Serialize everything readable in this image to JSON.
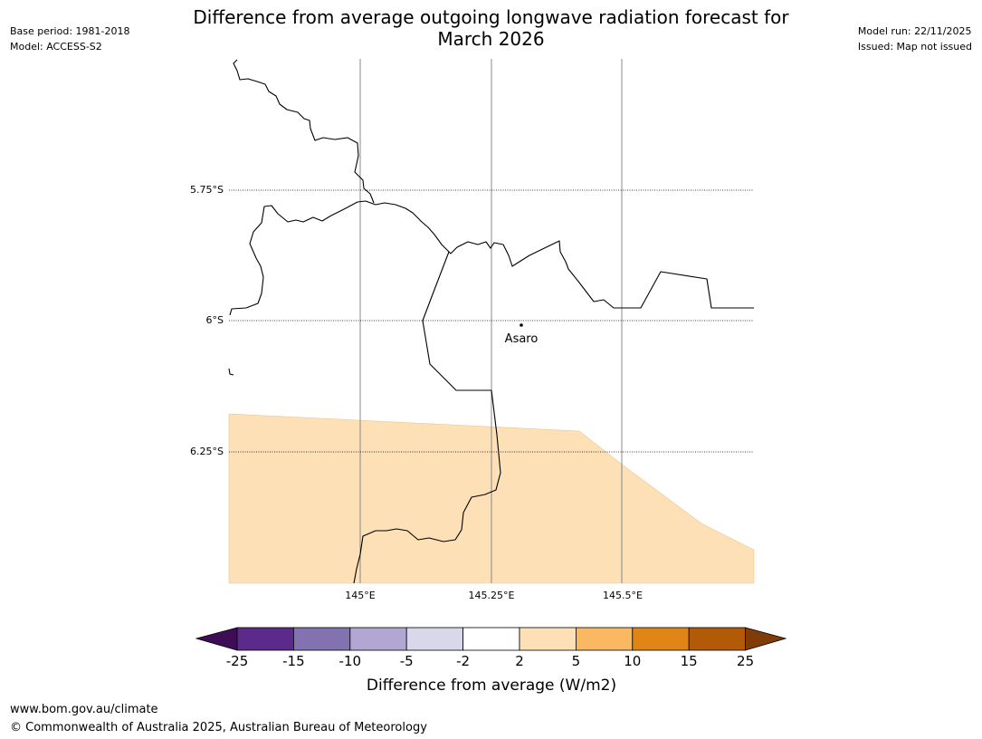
{
  "header": {
    "title_line1": "Difference from average outgoing longwave radiation forecast for",
    "title_line2": "March 2026",
    "base_period": "Base period: 1981-2018",
    "model": "Model: ACCESS-S2",
    "model_run": "Model run: 22/11/2025",
    "issued": "Issued: Map not issued"
  },
  "map": {
    "latitude_labels": [
      "5.75°S",
      "6°S",
      "6.25°S"
    ],
    "longitude_labels": [
      "145°E",
      "145.25°E",
      "145.5°E"
    ],
    "place_label": "Asaro",
    "anomaly_region_class": "2 to 5",
    "anomaly_region_color": "#fde0b6"
  },
  "colorbar": {
    "tick_labels": [
      "-25",
      "-15",
      "-10",
      "-5",
      "-2",
      "2",
      "5",
      "10",
      "15",
      "25"
    ],
    "colors": [
      "#3f0d56",
      "#5b2a8a",
      "#8272b0",
      "#b1a7d2",
      "#d9d8eb",
      "#ffffff",
      "#fde0b6",
      "#fbb862",
      "#e08416",
      "#b25a07",
      "#7f3b08"
    ],
    "label": "Difference from average (W/m2)"
  },
  "footer": {
    "url": "www.bom.gov.au/climate",
    "copyright": "© Commonwealth of Australia 2025, Australian Bureau of Meteorology"
  }
}
